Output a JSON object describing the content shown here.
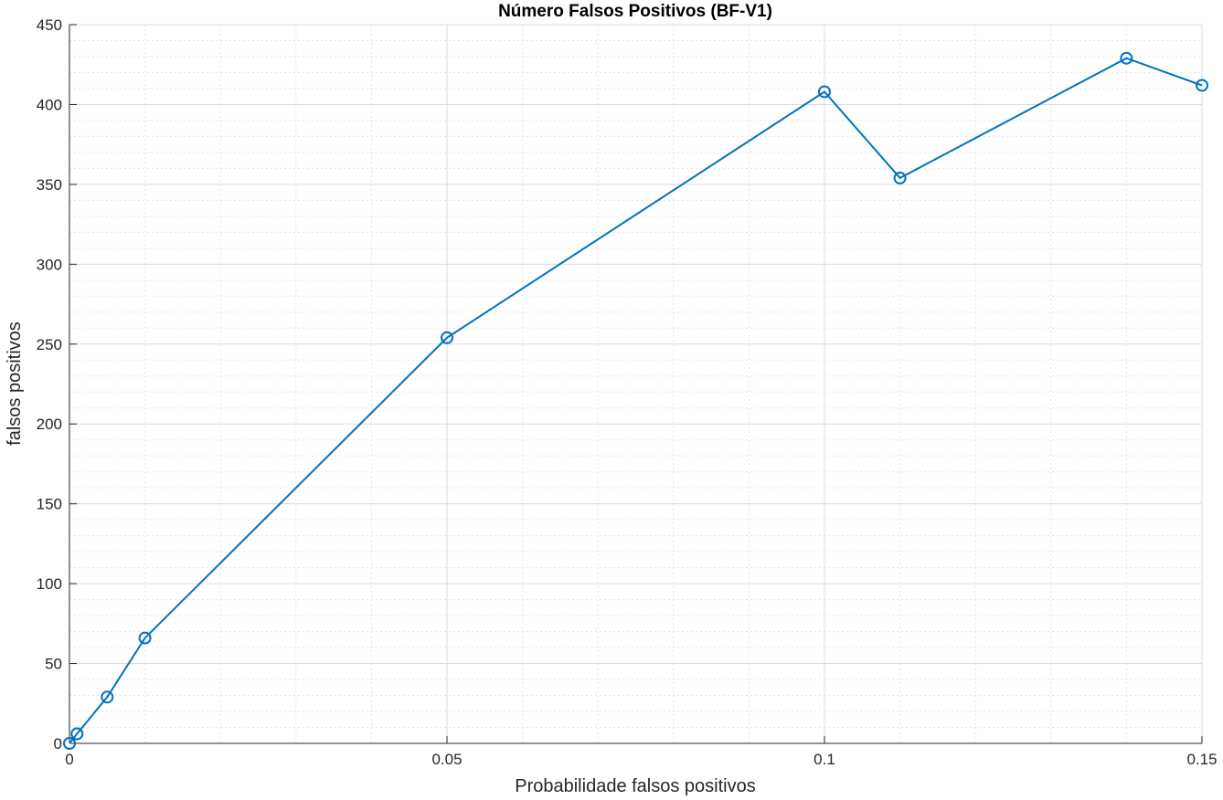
{
  "chart_data": {
    "type": "line",
    "title": "Número Falsos Positivos (BF-V1)",
    "xlabel": "Probabilidade falsos positivos",
    "ylabel": "falsos positivos",
    "xlim": [
      0,
      0.15
    ],
    "ylim": [
      0,
      450
    ],
    "x_ticks": [
      0,
      0.05,
      0.1,
      0.15
    ],
    "x_tick_labels": [
      "0",
      "0.05",
      "0.1",
      "0.15"
    ],
    "y_ticks": [
      0,
      50,
      100,
      150,
      200,
      250,
      300,
      350,
      400,
      450
    ],
    "y_tick_labels": [
      "0",
      "50",
      "100",
      "150",
      "200",
      "250",
      "300",
      "350",
      "400",
      "450"
    ],
    "grid": true,
    "minor_grid": true,
    "marker": "circle",
    "line_color": "#0072BD",
    "series": [
      {
        "x": [
          0,
          0.001,
          0.005,
          0.01,
          0.05,
          0.1,
          0.11,
          0.14,
          0.15
        ],
        "values": [
          0,
          6,
          29,
          66,
          254,
          408,
          354,
          429,
          412
        ]
      }
    ]
  }
}
